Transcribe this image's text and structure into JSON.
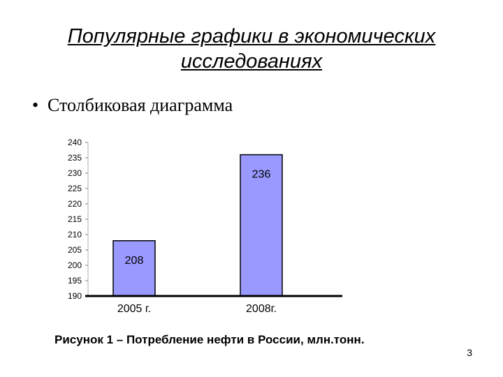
{
  "slide": {
    "title_line1": "Популярные графики в экономических",
    "title_line2": "исследованиях",
    "bullet_text": "Столбиковая диаграмма",
    "caption": "Рисунок 1 – Потребление нефти в России, млн.тонн.",
    "page_number": "3"
  },
  "chart_data": {
    "type": "bar",
    "categories": [
      "2005 г.",
      "2008г."
    ],
    "values": [
      208,
      236
    ],
    "data_labels": [
      "208",
      "236"
    ],
    "title": "",
    "xlabel": "",
    "ylabel": "",
    "ylim": [
      190,
      240
    ],
    "yticks": [
      190,
      195,
      200,
      205,
      210,
      215,
      220,
      225,
      230,
      235,
      240
    ],
    "grid": false,
    "legend": "none",
    "colors": {
      "bar_fill": "#9999ff",
      "bar_stroke": "#000000",
      "axis": "#000000"
    }
  }
}
